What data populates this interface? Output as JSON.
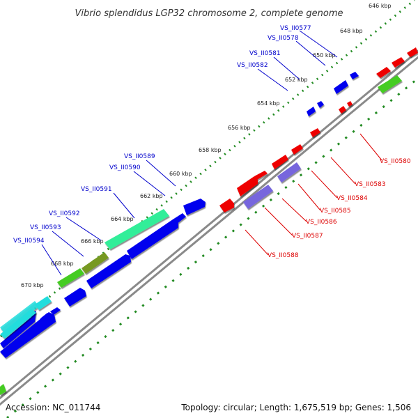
{
  "title": "Vibrio splendidus LGP32 chromosome 2, complete genome",
  "accession_label": "Accession: NC_011744",
  "summary": "Topology: circular; Length: 1,675,519 bp; Genes: 1,506",
  "ticks": [
    "646 kbp",
    "648 kbp",
    "650 kbp",
    "652 kbp",
    "654 kbp",
    "656 kbp",
    "658 kbp",
    "660 kbp",
    "662 kbp",
    "664 kbp",
    "666 kbp",
    "668 kbp",
    "670 kbp"
  ],
  "forward_gene_labels": [
    "VS_II0577",
    "VS_II0578",
    "VS_II0581",
    "VS_II0582",
    "VS_II0589",
    "VS_II0590",
    "VS_II0591",
    "VS_II0592",
    "VS_II0593",
    "VS_II0594"
  ],
  "reverse_gene_labels": [
    "VS_II0580",
    "VS_II0583",
    "VS_II0584",
    "VS_II0585",
    "VS_II0586",
    "VS_II0587",
    "VS_II0588"
  ],
  "colors": {
    "forward_cds": "#0000ee",
    "reverse_cds": "#ee0000",
    "forward_label": "#0000cc",
    "reverse_label": "#dd0000",
    "backbone": "#888888",
    "tick_marks": "#228b22",
    "cog_light_green": "#33ee99",
    "cog_green": "#44cc22",
    "cog_olive": "#779922",
    "cog_cyan": "#22dddd",
    "cog_purple": "#7766dd"
  }
}
